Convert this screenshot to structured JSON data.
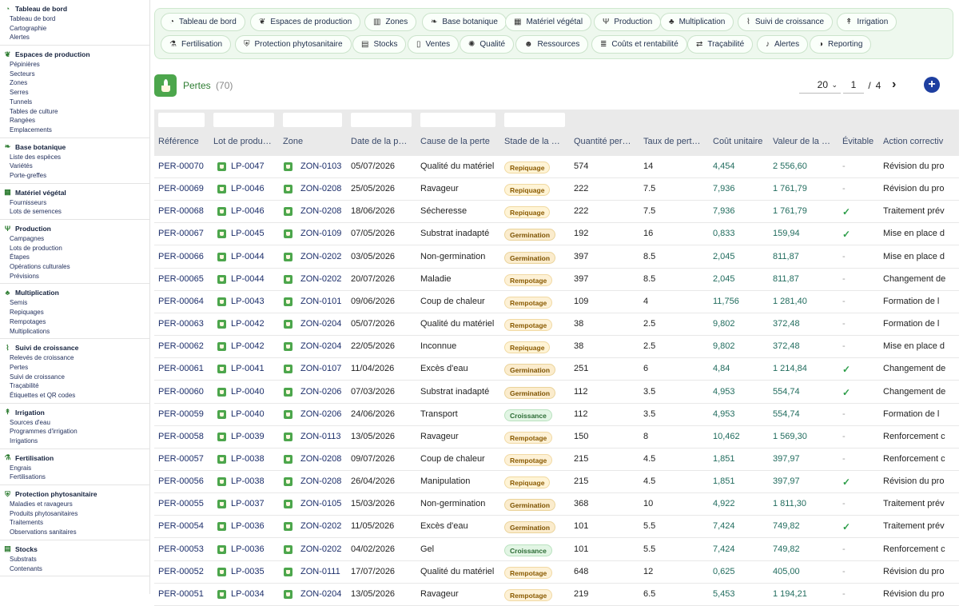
{
  "sidebar": [
    {
      "title": "Tableau de bord",
      "icon": "dashboard-icon",
      "items": [
        "Tableau de bord",
        "Cartographie",
        "Alertes"
      ]
    },
    {
      "title": "Espaces de production",
      "icon": "production-spaces-icon",
      "items": [
        "Pépinières",
        "Secteurs",
        "Zones",
        "Serres",
        "Tunnels",
        "Tables de culture",
        "Rangées",
        "Emplacements"
      ]
    },
    {
      "title": "Base botanique",
      "icon": "leaf-icon",
      "items": [
        "Liste des espèces",
        "Variétés",
        "Porte-greffes"
      ]
    },
    {
      "title": "Matériel végétal",
      "icon": "plant-material-icon",
      "items": [
        "Fournisseurs",
        "Lots de semences"
      ]
    },
    {
      "title": "Production",
      "icon": "sprout-icon",
      "items": [
        "Campagnes",
        "Lots de production",
        "Étapes",
        "Opérations culturales",
        "Prévisions"
      ]
    },
    {
      "title": "Multiplication",
      "icon": "multiplication-icon",
      "items": [
        "Semis",
        "Repiquages",
        "Rempotages",
        "Multiplications"
      ]
    },
    {
      "title": "Suivi de croissance",
      "icon": "growth-chart-icon",
      "items": [
        "Relevés de croissance",
        "Pertes",
        "Suivi de croissance",
        "Traçabilité",
        "Étiquettes et QR codes"
      ]
    },
    {
      "title": "Irrigation",
      "icon": "irrigation-icon",
      "items": [
        "Sources d'eau",
        "Programmes d'irrigation",
        "Irrigations"
      ]
    },
    {
      "title": "Fertilisation",
      "icon": "flask-icon",
      "items": [
        "Engrais",
        "Fertilisations"
      ]
    },
    {
      "title": "Protection phytosanitaire",
      "icon": "shield-icon",
      "items": [
        "Maladies et ravageurs",
        "Produits phytosanitaires",
        "Traitements",
        "Observations sanitaires"
      ]
    },
    {
      "title": "Stocks",
      "icon": "stock-icon",
      "items": [
        "Substrats",
        "Contenants"
      ]
    }
  ],
  "menu": [
    {
      "label": "Tableau de bord",
      "icon": "dashboard-icon"
    },
    {
      "label": "Espaces de production",
      "icon": "production-spaces-icon"
    },
    {
      "label": "Zones",
      "icon": "map-icon"
    },
    {
      "label": "Base botanique",
      "icon": "leaf-icon"
    },
    {
      "label": "Matériel végétal",
      "icon": "plant-material-icon"
    },
    {
      "label": "Production",
      "icon": "sprout-icon"
    },
    {
      "label": "Multiplication",
      "icon": "multiplication-icon"
    },
    {
      "label": "Suivi de croissance",
      "icon": "growth-chart-icon"
    },
    {
      "label": "Irrigation",
      "icon": "irrigation-icon"
    },
    {
      "label": "Fertilisation",
      "icon": "flask-icon"
    },
    {
      "label": "Protection phytosanitaire",
      "icon": "shield-icon"
    },
    {
      "label": "Stocks",
      "icon": "stock-icon"
    },
    {
      "label": "Ventes",
      "icon": "document-icon"
    },
    {
      "label": "Qualité",
      "icon": "quality-icon"
    },
    {
      "label": "Ressources",
      "icon": "people-icon"
    },
    {
      "label": "Coûts et rentabilité",
      "icon": "coins-icon"
    },
    {
      "label": "Traçabilité",
      "icon": "trace-icon"
    },
    {
      "label": "Alertes",
      "icon": "bell-icon"
    },
    {
      "label": "Reporting",
      "icon": "report-icon"
    }
  ],
  "page": {
    "title": "Pertes",
    "count": "(70)",
    "per_page": "20",
    "current_page": "1",
    "sep": "/",
    "total_pages": "4"
  },
  "columns": [
    "Référence",
    "Lot de produ…",
    "Zone",
    "Date de la p…",
    "Cause de la perte",
    "Stade de la …",
    "Quantité per…",
    "Taux de pert…",
    "Coût unitaire",
    "Valeur de la …",
    "Évitable",
    "Action correctiv"
  ],
  "rows": [
    [
      "PER-00070",
      "LP-0047",
      "ZON-0103",
      "05/07/2026",
      "Qualité du matériel",
      "Repiquage",
      "574",
      "14",
      "4,454",
      "2 556,60",
      "-",
      "Révision du pro"
    ],
    [
      "PER-00069",
      "LP-0046",
      "ZON-0208",
      "25/05/2026",
      "Ravageur",
      "Repiquage",
      "222",
      "7.5",
      "7,936",
      "1 761,79",
      "-",
      "Révision du pro"
    ],
    [
      "PER-00068",
      "LP-0046",
      "ZON-0208",
      "18/06/2026",
      "Sécheresse",
      "Repiquage",
      "222",
      "7.5",
      "7,936",
      "1 761,79",
      "✓",
      "Traitement prév"
    ],
    [
      "PER-00067",
      "LP-0045",
      "ZON-0109",
      "07/05/2026",
      "Substrat inadapté",
      "Germination",
      "192",
      "16",
      "0,833",
      "159,94",
      "✓",
      "Mise en place d"
    ],
    [
      "PER-00066",
      "LP-0044",
      "ZON-0202",
      "03/05/2026",
      "Non-germination",
      "Germination",
      "397",
      "8.5",
      "2,045",
      "811,87",
      "-",
      "Mise en place d"
    ],
    [
      "PER-00065",
      "LP-0044",
      "ZON-0202",
      "20/07/2026",
      "Maladie",
      "Rempotage",
      "397",
      "8.5",
      "2,045",
      "811,87",
      "-",
      "Changement de"
    ],
    [
      "PER-00064",
      "LP-0043",
      "ZON-0101",
      "09/06/2026",
      "Coup de chaleur",
      "Rempotage",
      "109",
      "4",
      "11,756",
      "1 281,40",
      "-",
      "Formation de l"
    ],
    [
      "PER-00063",
      "LP-0042",
      "ZON-0204",
      "05/07/2026",
      "Qualité du matériel",
      "Rempotage",
      "38",
      "2.5",
      "9,802",
      "372,48",
      "-",
      "Formation de l"
    ],
    [
      "PER-00062",
      "LP-0042",
      "ZON-0204",
      "22/05/2026",
      "Inconnue",
      "Repiquage",
      "38",
      "2.5",
      "9,802",
      "372,48",
      "-",
      "Mise en place d"
    ],
    [
      "PER-00061",
      "LP-0041",
      "ZON-0107",
      "11/04/2026",
      "Excès d'eau",
      "Germination",
      "251",
      "6",
      "4,84",
      "1 214,84",
      "✓",
      "Changement de"
    ],
    [
      "PER-00060",
      "LP-0040",
      "ZON-0206",
      "07/03/2026",
      "Substrat inadapté",
      "Germination",
      "112",
      "3.5",
      "4,953",
      "554,74",
      "✓",
      "Changement de"
    ],
    [
      "PER-00059",
      "LP-0040",
      "ZON-0206",
      "24/06/2026",
      "Transport",
      "Croissance",
      "112",
      "3.5",
      "4,953",
      "554,74",
      "-",
      "Formation de l"
    ],
    [
      "PER-00058",
      "LP-0039",
      "ZON-0113",
      "13/05/2026",
      "Ravageur",
      "Rempotage",
      "150",
      "8",
      "10,462",
      "1 569,30",
      "-",
      "Renforcement c"
    ],
    [
      "PER-00057",
      "LP-0038",
      "ZON-0208",
      "09/07/2026",
      "Coup de chaleur",
      "Rempotage",
      "215",
      "4.5",
      "1,851",
      "397,97",
      "-",
      "Renforcement c"
    ],
    [
      "PER-00056",
      "LP-0038",
      "ZON-0208",
      "26/04/2026",
      "Manipulation",
      "Repiquage",
      "215",
      "4.5",
      "1,851",
      "397,97",
      "✓",
      "Révision du pro"
    ],
    [
      "PER-00055",
      "LP-0037",
      "ZON-0105",
      "15/03/2026",
      "Non-germination",
      "Germination",
      "368",
      "10",
      "4,922",
      "1 811,30",
      "-",
      "Traitement prév"
    ],
    [
      "PER-00054",
      "LP-0036",
      "ZON-0202",
      "11/05/2026",
      "Excès d'eau",
      "Germination",
      "101",
      "5.5",
      "7,424",
      "749,82",
      "✓",
      "Traitement prév"
    ],
    [
      "PER-00053",
      "LP-0036",
      "ZON-0202",
      "04/02/2026",
      "Gel",
      "Croissance",
      "101",
      "5.5",
      "7,424",
      "749,82",
      "-",
      "Renforcement c"
    ],
    [
      "PER-00052",
      "LP-0035",
      "ZON-0111",
      "17/07/2026",
      "Qualité du matériel",
      "Rempotage",
      "648",
      "12",
      "0,625",
      "405,00",
      "-",
      "Révision du pro"
    ],
    [
      "PER-00051",
      "LP-0034",
      "ZON-0204",
      "13/05/2026",
      "Ravageur",
      "Rempotage",
      "219",
      "6.5",
      "5,453",
      "1 194,21",
      "-",
      "Révision du pro"
    ]
  ]
}
